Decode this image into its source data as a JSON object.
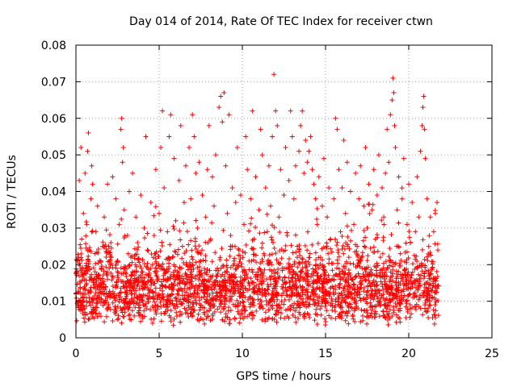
{
  "chart_data": {
    "type": "scatter",
    "title": "Day 014 of 2014, Rate Of TEC Index for receiver ctwn",
    "xlabel": "GPS time / hours",
    "ylabel": "ROTI / TECUs",
    "xlim": [
      0,
      25
    ],
    "ylim": [
      0,
      0.08
    ],
    "x_ticks": [
      0,
      5,
      10,
      15,
      20,
      25
    ],
    "x_tick_labels": [
      "0",
      "5",
      "10",
      "15",
      "20",
      "25"
    ],
    "y_ticks": [
      0,
      0.01,
      0.02,
      0.03,
      0.04,
      0.05,
      0.06,
      0.07,
      0.08
    ],
    "y_tick_labels": [
      "0",
      "0.01",
      "0.02",
      "0.03",
      "0.04",
      "0.05",
      "0.06",
      "0.07",
      "0.08"
    ],
    "grid": true,
    "legend": "none",
    "marker": "plus",
    "color": "#ff0000",
    "series": [
      {
        "name": "",
        "points": [
          [
            0.0,
            0.012
          ],
          [
            0.05,
            0.018
          ],
          [
            0.1,
            0.009
          ],
          [
            0.15,
            0.022
          ],
          [
            0.2,
            0.043
          ],
          [
            0.25,
            0.015
          ],
          [
            0.3,
            0.052
          ],
          [
            0.35,
            0.027
          ],
          [
            0.4,
            0.011
          ],
          [
            0.45,
            0.034
          ],
          [
            0.5,
            0.008
          ],
          [
            0.55,
            0.045
          ],
          [
            0.6,
            0.019
          ],
          [
            0.65,
            0.031
          ],
          [
            0.7,
            0.051
          ],
          [
            0.75,
            0.056
          ],
          [
            0.8,
            0.024
          ],
          [
            0.85,
            0.013
          ],
          [
            0.9,
            0.038
          ],
          [
            0.95,
            0.047
          ],
          [
            1.0,
            0.042
          ],
          [
            1.1,
            0.016
          ],
          [
            1.2,
            0.029
          ],
          [
            1.3,
            0.036
          ],
          [
            1.4,
            0.01
          ],
          [
            1.5,
            0.021
          ],
          [
            1.6,
            0.025
          ],
          [
            1.7,
            0.033
          ],
          [
            1.8,
            0.014
          ],
          [
            1.9,
            0.042
          ],
          [
            2.0,
            0.019
          ],
          [
            2.1,
            0.026
          ],
          [
            2.2,
            0.044
          ],
          [
            2.3,
            0.012
          ],
          [
            2.4,
            0.038
          ],
          [
            2.5,
            0.017
          ],
          [
            2.6,
            0.031
          ],
          [
            2.7,
            0.057
          ],
          [
            2.75,
            0.06
          ],
          [
            2.8,
            0.048
          ],
          [
            2.85,
            0.052
          ],
          [
            2.9,
            0.035
          ],
          [
            3.0,
            0.015
          ],
          [
            3.1,
            0.028
          ],
          [
            3.2,
            0.04
          ],
          [
            3.3,
            0.022
          ],
          [
            3.4,
            0.045
          ],
          [
            3.5,
            0.011
          ],
          [
            3.6,
            0.033
          ],
          [
            3.7,
            0.026
          ],
          [
            3.8,
            0.006
          ],
          [
            3.9,
            0.039
          ],
          [
            4.0,
            0.018
          ],
          [
            4.1,
            0.03
          ],
          [
            4.2,
            0.055
          ],
          [
            4.3,
            0.024
          ],
          [
            4.4,
            0.013
          ],
          [
            4.5,
            0.037
          ],
          [
            4.6,
            0.02
          ],
          [
            4.7,
            0.028
          ],
          [
            4.8,
            0.046
          ],
          [
            4.9,
            0.016
          ],
          [
            5.0,
            0.034
          ],
          [
            5.1,
            0.052
          ],
          [
            5.2,
            0.062
          ],
          [
            5.3,
            0.041
          ],
          [
            5.4,
            0.014
          ],
          [
            5.5,
            0.029
          ],
          [
            5.6,
            0.055
          ],
          [
            5.7,
            0.061
          ],
          [
            5.8,
            0.022
          ],
          [
            5.9,
            0.049
          ],
          [
            6.0,
            0.032
          ],
          [
            6.1,
            0.012
          ],
          [
            6.2,
            0.043
          ],
          [
            6.3,
            0.058
          ],
          [
            6.4,
            0.025
          ],
          [
            6.5,
            0.037
          ],
          [
            6.6,
            0.047
          ],
          [
            6.7,
            0.016
          ],
          [
            6.8,
            0.052
          ],
          [
            6.9,
            0.038
          ],
          [
            7.0,
            0.061
          ],
          [
            7.1,
            0.055
          ],
          [
            7.2,
            0.045
          ],
          [
            7.3,
            0.03
          ],
          [
            7.4,
            0.048
          ],
          [
            7.5,
            0.021
          ],
          [
            7.6,
            0.039
          ],
          [
            7.7,
            0.013
          ],
          [
            7.8,
            0.033
          ],
          [
            7.9,
            0.046
          ],
          [
            8.0,
            0.058
          ],
          [
            8.1,
            0.027
          ],
          [
            8.2,
            0.044
          ],
          [
            8.3,
            0.036
          ],
          [
            8.4,
            0.05
          ],
          [
            8.5,
            0.019
          ],
          [
            8.6,
            0.063
          ],
          [
            8.7,
            0.066
          ],
          [
            8.8,
            0.059
          ],
          [
            8.9,
            0.067
          ],
          [
            9.0,
            0.047
          ],
          [
            9.1,
            0.034
          ],
          [
            9.2,
            0.061
          ],
          [
            9.3,
            0.028
          ],
          [
            9.4,
            0.041
          ],
          [
            9.5,
            0.015
          ],
          [
            9.6,
            0.037
          ],
          [
            9.7,
            0.052
          ],
          [
            9.8,
            0.024
          ],
          [
            9.9,
            0.039
          ],
          [
            10.0,
            0.011
          ],
          [
            10.1,
            0.031
          ],
          [
            10.2,
            0.055
          ],
          [
            10.3,
            0.046
          ],
          [
            10.4,
            0.021
          ],
          [
            10.5,
            0.038
          ],
          [
            10.6,
            0.062
          ],
          [
            10.7,
            0.027
          ],
          [
            10.8,
            0.044
          ],
          [
            10.9,
            0.016
          ],
          [
            11.0,
            0.035
          ],
          [
            11.1,
            0.057
          ],
          [
            11.2,
            0.05
          ],
          [
            11.3,
            0.023
          ],
          [
            11.4,
            0.041
          ],
          [
            11.5,
            0.029
          ],
          [
            11.6,
            0.047
          ],
          [
            11.7,
            0.036
          ],
          [
            11.8,
            0.055
          ],
          [
            11.9,
            0.072
          ],
          [
            12.0,
            0.062
          ],
          [
            12.1,
            0.058
          ],
          [
            12.2,
            0.033
          ],
          [
            12.3,
            0.046
          ],
          [
            12.4,
            0.019
          ],
          [
            12.5,
            0.039
          ],
          [
            12.6,
            0.052
          ],
          [
            12.7,
            0.028
          ],
          [
            12.8,
            0.043
          ],
          [
            12.9,
            0.062
          ],
          [
            13.0,
            0.055
          ],
          [
            13.1,
            0.038
          ],
          [
            13.2,
            0.047
          ],
          [
            13.3,
            0.025
          ],
          [
            13.4,
            0.051
          ],
          [
            13.5,
            0.058
          ],
          [
            13.6,
            0.062
          ],
          [
            13.7,
            0.045
          ],
          [
            13.8,
            0.054
          ],
          [
            13.9,
            0.048
          ],
          [
            14.0,
            0.051
          ],
          [
            14.1,
            0.055
          ],
          [
            14.2,
            0.046
          ],
          [
            14.3,
            0.042
          ],
          [
            14.4,
            0.038
          ],
          [
            14.5,
            0.031
          ],
          [
            14.6,
            0.044
          ],
          [
            14.7,
            0.022
          ],
          [
            14.8,
            0.036
          ],
          [
            14.9,
            0.049
          ],
          [
            15.0,
            0.018
          ],
          [
            15.1,
            0.033
          ],
          [
            15.2,
            0.041
          ],
          [
            15.3,
            0.027
          ],
          [
            15.4,
            0.014
          ],
          [
            15.5,
            0.038
          ],
          [
            15.6,
            0.06
          ],
          [
            15.7,
            0.057
          ],
          [
            15.8,
            0.046
          ],
          [
            15.9,
            0.029
          ],
          [
            16.0,
            0.041
          ],
          [
            16.1,
            0.054
          ],
          [
            16.2,
            0.034
          ],
          [
            16.3,
            0.048
          ],
          [
            16.4,
            0.022
          ],
          [
            16.5,
            0.04
          ],
          [
            16.6,
            0.016
          ],
          [
            16.7,
            0.031
          ],
          [
            16.8,
            0.045
          ],
          [
            16.9,
            0.025
          ],
          [
            17.0,
            0.038
          ],
          [
            17.1,
            0.047
          ],
          [
            17.2,
            0.019
          ],
          [
            17.3,
            0.036
          ],
          [
            17.4,
            0.052
          ],
          [
            17.5,
            0.03
          ],
          [
            17.6,
            0.042
          ],
          [
            17.7,
            0.014
          ],
          [
            17.8,
            0.035
          ],
          [
            17.9,
            0.046
          ],
          [
            18.0,
            0.027
          ],
          [
            18.1,
            0.039
          ],
          [
            18.2,
            0.05
          ],
          [
            18.3,
            0.022
          ],
          [
            18.4,
            0.041
          ],
          [
            18.5,
            0.033
          ],
          [
            18.6,
            0.045
          ],
          [
            18.7,
            0.057
          ],
          [
            18.8,
            0.048
          ],
          [
            18.9,
            0.061
          ],
          [
            19.0,
            0.065
          ],
          [
            19.05,
            0.071
          ],
          [
            19.1,
            0.067
          ],
          [
            19.15,
            0.058
          ],
          [
            19.2,
            0.052
          ],
          [
            19.3,
            0.035
          ],
          [
            19.4,
            0.044
          ],
          [
            19.5,
            0.023
          ],
          [
            19.6,
            0.038
          ],
          [
            19.7,
            0.049
          ],
          [
            19.8,
            0.017
          ],
          [
            19.9,
            0.031
          ],
          [
            20.0,
            0.042
          ],
          [
            20.1,
            0.026
          ],
          [
            20.2,
            0.037
          ],
          [
            20.3,
            0.012
          ],
          [
            20.4,
            0.029
          ],
          [
            20.5,
            0.044
          ],
          [
            20.6,
            0.033
          ],
          [
            20.7,
            0.051
          ],
          [
            20.8,
            0.058
          ],
          [
            20.85,
            0.063
          ],
          [
            20.9,
            0.066
          ],
          [
            20.95,
            0.057
          ],
          [
            21.0,
            0.049
          ],
          [
            21.1,
            0.038
          ],
          [
            21.2,
            0.025
          ],
          [
            21.3,
            0.033
          ],
          [
            21.4,
            0.019
          ],
          [
            21.5,
            0.029
          ],
          [
            21.6,
            0.034
          ],
          [
            21.7,
            0.037
          ],
          [
            21.75,
            0.024
          ]
        ]
      }
    ],
    "dense_band": {
      "x_range": [
        0,
        21.8
      ],
      "y_low": 0.003,
      "y_high": 0.03,
      "description": "dense cloud of points between roughly 0.005 and 0.025 across the whole time range"
    }
  }
}
